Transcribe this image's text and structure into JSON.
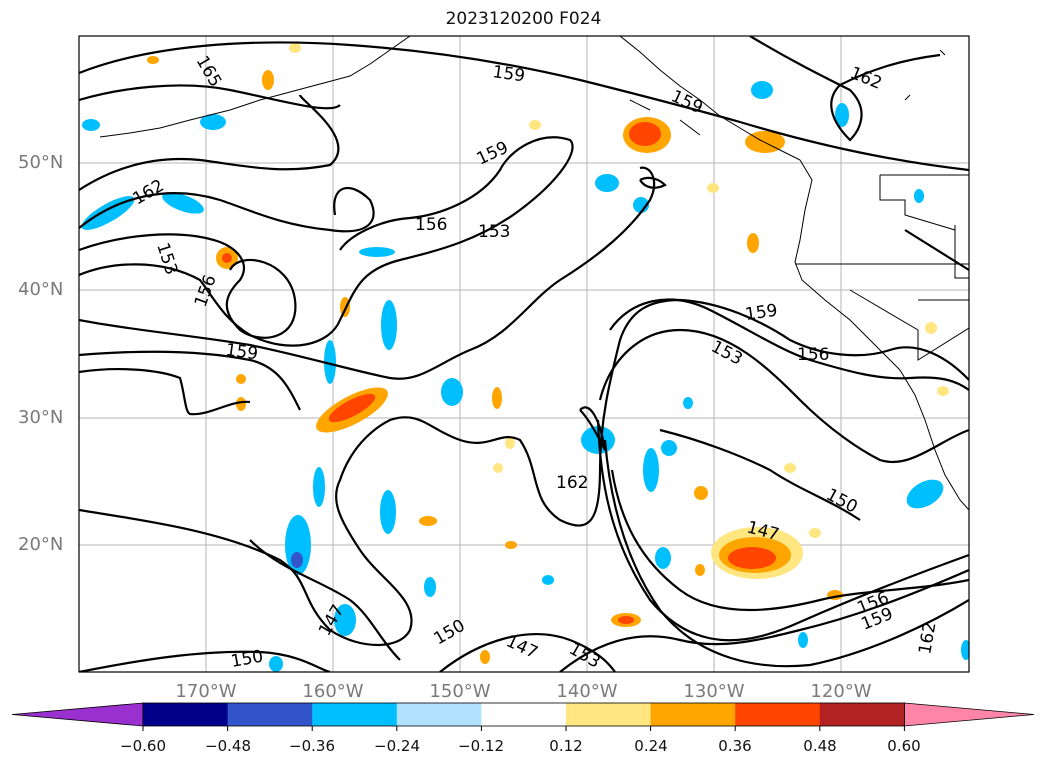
{
  "title": "2023120200 F024",
  "lat_labels": [
    "50°N",
    "40°N",
    "30°N",
    "20°N"
  ],
  "lon_labels": [
    "170°W",
    "160°W",
    "150°W",
    "140°W",
    "130°W",
    "120°W"
  ],
  "colorbar": {
    "colors": [
      "#9b30d0",
      "#00008b",
      "#3355cc",
      "#00bfff",
      "#b0e2ff",
      "#ffffff",
      "#ffe680",
      "#ffa500",
      "#ff4500",
      "#b22222",
      "#ff85a8"
    ],
    "tick_labels": [
      "−0.60",
      "−0.48",
      "−0.36",
      "−0.24",
      "−0.12",
      "0.12",
      "0.24",
      "0.36",
      "0.48",
      "0.60"
    ]
  },
  "contour_labels": [
    "165",
    "159",
    "162",
    "159",
    "162",
    "156",
    "153",
    "153",
    "156",
    "159",
    "159",
    "153",
    "156",
    "162",
    "150",
    "147",
    "147",
    "150",
    "147",
    "153",
    "156",
    "159",
    "162",
    "150",
    "159"
  ]
}
